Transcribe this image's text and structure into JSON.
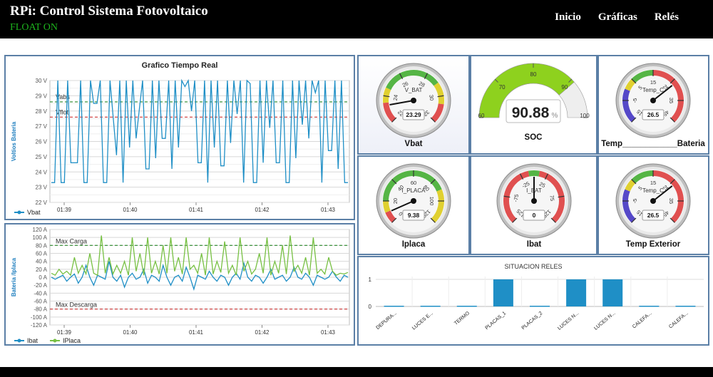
{
  "header": {
    "title": "RPi: Control Sistema Fotovoltaico",
    "status": "FLOAT ON",
    "nav": [
      "Inicio",
      "Gráficas",
      "Relés"
    ]
  },
  "colors": {
    "blue": "#1f8fc6",
    "green": "#77c043",
    "red_dash": "#cc3333",
    "green_dash": "#2a8a2a",
    "panel_border": "#5b7fa6"
  },
  "chart_data": [
    {
      "type": "line",
      "title": "Grafico Tiempo Real",
      "ylabel": "Voltios Bateria",
      "ylim": [
        22,
        30
      ],
      "yticks": [
        "22 V",
        "23 V",
        "24 V",
        "25 V",
        "26 V",
        "27 V",
        "28 V",
        "29 V",
        "30 V"
      ],
      "xticks": [
        "01:39",
        "01:40",
        "01:41",
        "01:42",
        "01:43"
      ],
      "plotlines": [
        {
          "label": "Vabs",
          "value": 28.6,
          "color": "green"
        },
        {
          "label": "Vflot",
          "value": 27.6,
          "color": "red"
        }
      ],
      "series": [
        {
          "name": "Vbat",
          "color": "#1f8fc6",
          "values": [
            23.3,
            23.3,
            30,
            23.3,
            23.3,
            30,
            24.6,
            24.6,
            24.6,
            30,
            23.3,
            23.3,
            30,
            28.5,
            28.5,
            30,
            23.3,
            23.3,
            30,
            27.5,
            25.1,
            30,
            23.3,
            30,
            25.6,
            30,
            26.2,
            28.1,
            30,
            24.2,
            24.2,
            30,
            24.9,
            30,
            26.2,
            26.2,
            30,
            24.2,
            30,
            25.6,
            30,
            29.6,
            30,
            28,
            30,
            24.6,
            24.6,
            30,
            23.3,
            30,
            25.6,
            30,
            24.4,
            24.4,
            30,
            25.9,
            30,
            27.8,
            30,
            23.3,
            30,
            29.8,
            23.3,
            23.3,
            30,
            24.6,
            30,
            26.9,
            30,
            24.6,
            24.6,
            30,
            23.3,
            23.3,
            30,
            24.9,
            30,
            27.1,
            30,
            26.2,
            30,
            29.2,
            30,
            23.3,
            30,
            25.4,
            25.4,
            30,
            24.2,
            30,
            23.3,
            23.3
          ]
        }
      ]
    },
    {
      "type": "line",
      "ylabel": "Bateria /Iplaca",
      "ylim": [
        -120,
        120
      ],
      "yticks": [
        "-120 A",
        "-100 A",
        "-80 A",
        "-60 A",
        "-40 A",
        "-20 A",
        "0 A",
        "20 A",
        "40 A",
        "60 A",
        "80 A",
        "100 A",
        "120 A"
      ],
      "xticks": [
        "01:39",
        "01:40",
        "01:41",
        "01:42",
        "01:43"
      ],
      "plotlines": [
        {
          "label": "Max Carga",
          "value": 80,
          "color": "green"
        },
        {
          "label": "Max Descarga",
          "value": -80,
          "color": "red"
        }
      ],
      "series": [
        {
          "name": "Ibat",
          "color": "#1f8fc6",
          "values": [
            0,
            -5,
            0,
            5,
            -10,
            0,
            8,
            -15,
            0,
            30,
            0,
            -20,
            5,
            0,
            -5,
            40,
            0,
            -10,
            5,
            -25,
            0,
            10,
            -5,
            0,
            20,
            -15,
            5,
            0,
            -10,
            30,
            0,
            -20,
            0,
            5,
            -10,
            25,
            0,
            -30,
            5,
            0,
            -5,
            15,
            0,
            -10,
            5,
            0,
            -20,
            0,
            10,
            -5,
            35,
            0,
            -10,
            5,
            0,
            -15,
            0,
            20,
            -5,
            0,
            5,
            -10,
            0,
            25,
            0,
            -5,
            10,
            0,
            -20,
            5,
            0,
            -5,
            0,
            15,
            0,
            -10,
            5,
            0
          ]
        },
        {
          "name": "IPlaca",
          "color": "#77c043",
          "values": [
            10,
            5,
            20,
            8,
            15,
            5,
            50,
            10,
            30,
            8,
            60,
            10,
            5,
            105,
            10,
            50,
            8,
            30,
            10,
            40,
            5,
            100,
            15,
            60,
            5,
            100,
            10,
            40,
            8,
            80,
            10,
            100,
            15,
            50,
            8,
            100,
            20,
            30,
            10,
            60,
            5,
            100,
            8,
            40,
            12,
            90,
            10,
            30,
            5,
            100,
            15,
            40,
            8,
            20,
            60,
            10,
            100,
            5,
            40,
            10,
            80,
            8,
            105,
            15,
            30,
            10,
            50,
            5,
            100,
            10,
            20,
            8,
            50,
            15,
            5,
            10,
            8,
            12
          ]
        }
      ]
    },
    {
      "type": "bar",
      "title": "SITUACION RELES",
      "ylim": [
        0,
        1
      ],
      "yticks": [
        "0",
        "1"
      ],
      "categories": [
        "DEPURA...",
        "LUCES E...",
        "TERMO",
        "PLACAS_1",
        "PLACAS_2",
        "LUCES N...",
        "LUCES N...",
        "CALEFA...",
        "CALEFA..."
      ],
      "values": [
        0,
        0,
        0,
        1,
        0,
        1,
        1,
        0,
        0
      ]
    }
  ],
  "gauges": [
    {
      "id": "vbat",
      "label": "Vbat",
      "inner": "V_BAT",
      "value": 23.29,
      "display": "23.29",
      "min": 22,
      "max": 32,
      "ticks": [
        "22",
        "24",
        "26",
        "28",
        "30",
        "32"
      ]
    },
    {
      "id": "soc",
      "label": "SOC",
      "value": 90.88,
      "display": "90.88",
      "unit": "%",
      "min": 60,
      "max": 100,
      "ticks": [
        "60",
        "70",
        "80",
        "90",
        "100"
      ]
    },
    {
      "id": "temp-bat",
      "label": "Temp____________Bateria",
      "inner": "Temp_C",
      "value": 26.5,
      "display": "26.5",
      "min": -15,
      "max": 45,
      "ticks": [
        "-15",
        "-5",
        "5",
        "15",
        "25",
        "35",
        "45"
      ]
    },
    {
      "id": "iplaca",
      "label": "Iplaca",
      "inner": "I_PLACA",
      "value": 9.38,
      "display": "9.38",
      "min": 0,
      "max": 120,
      "ticks": [
        "0",
        "20",
        "40",
        "60",
        "80",
        "100",
        "120"
      ]
    },
    {
      "id": "ibat",
      "label": "Ibat",
      "inner": "I_BAT",
      "value": 0,
      "display": "0",
      "min": -125,
      "max": 125,
      "ticks": [
        "-125",
        "-75",
        "-25",
        "25",
        "75",
        "125"
      ]
    },
    {
      "id": "temp-ext",
      "label": "Temp Exterior",
      "inner": "Temp_C",
      "value": 26.5,
      "display": "26.5",
      "min": -15,
      "max": 45,
      "ticks": [
        "-15",
        "-5",
        "5",
        "15",
        "25",
        "35",
        "45"
      ]
    }
  ]
}
